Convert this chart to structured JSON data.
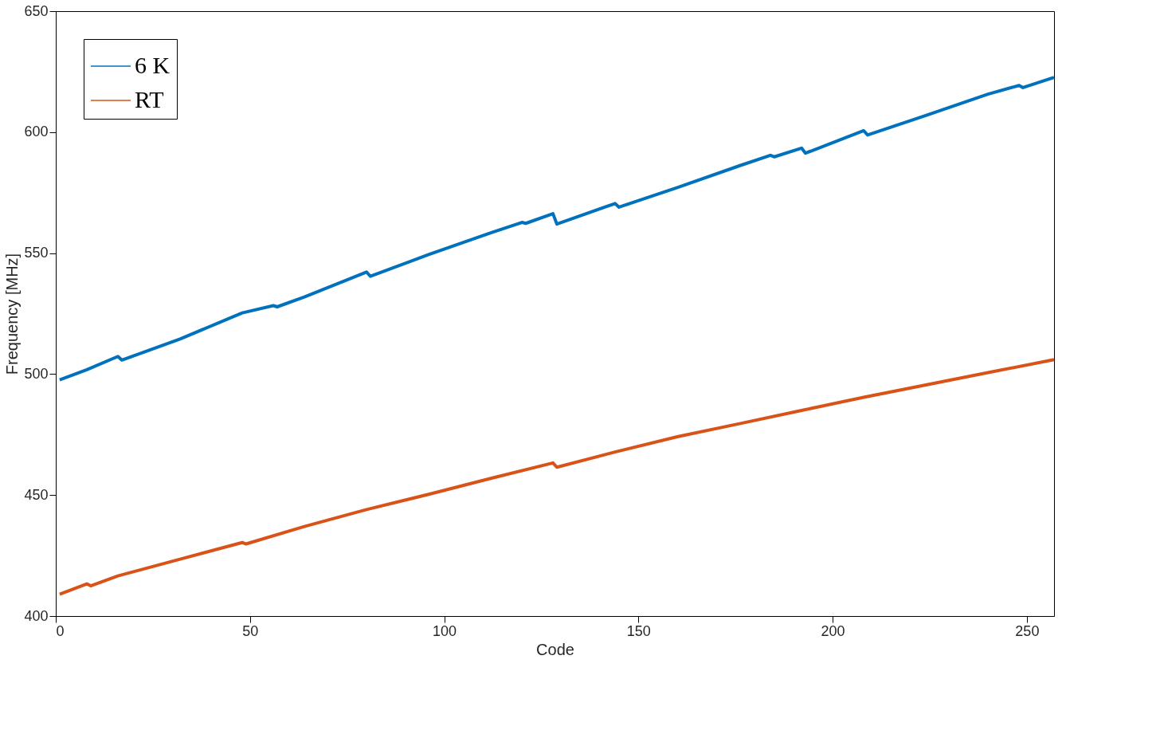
{
  "chart_data": {
    "type": "line",
    "xlabel": "Code",
    "ylabel": "Frequency [MHz]",
    "xlim": [
      0,
      257
    ],
    "xticks": [
      0,
      50,
      100,
      150,
      200,
      250
    ],
    "ylim": [
      400,
      650
    ],
    "yticks": [
      400,
      450,
      500,
      550,
      600,
      650
    ],
    "grid": false,
    "legend": "top left",
    "marker": "none",
    "line_style": "solid",
    "series": [
      {
        "name": "6 K",
        "color": "#0072bd",
        "x": [
          1,
          8,
          16,
          17,
          32,
          48,
          56,
          57,
          64,
          80,
          81,
          96,
          112,
          120,
          121,
          128,
          129,
          144,
          145,
          160,
          176,
          184,
          185,
          192,
          193,
          208,
          209,
          224,
          240,
          248,
          249,
          257
        ],
        "values": [
          497.6,
          501.8,
          507.3,
          505.8,
          514.5,
          525.3,
          528.3,
          527.8,
          531.9,
          542.2,
          540.4,
          549.4,
          558.4,
          562.7,
          562.3,
          566.3,
          562.0,
          570.5,
          569.0,
          577.1,
          586.1,
          590.4,
          589.8,
          593.4,
          591.3,
          600.6,
          598.8,
          606.9,
          615.7,
          619.3,
          618.4,
          622.6
        ]
      },
      {
        "name": "RT",
        "color": "#d95319",
        "x": [
          1,
          8,
          9,
          16,
          32,
          48,
          49,
          64,
          80,
          96,
          112,
          128,
          129,
          144,
          160,
          176,
          192,
          208,
          224,
          240,
          257
        ],
        "values": [
          409.0,
          413.3,
          412.5,
          416.6,
          423.5,
          430.4,
          429.8,
          437.0,
          444.0,
          450.3,
          456.9,
          463.3,
          461.5,
          467.8,
          474.1,
          479.5,
          485.0,
          490.4,
          495.5,
          500.6,
          506.0
        ]
      }
    ]
  }
}
